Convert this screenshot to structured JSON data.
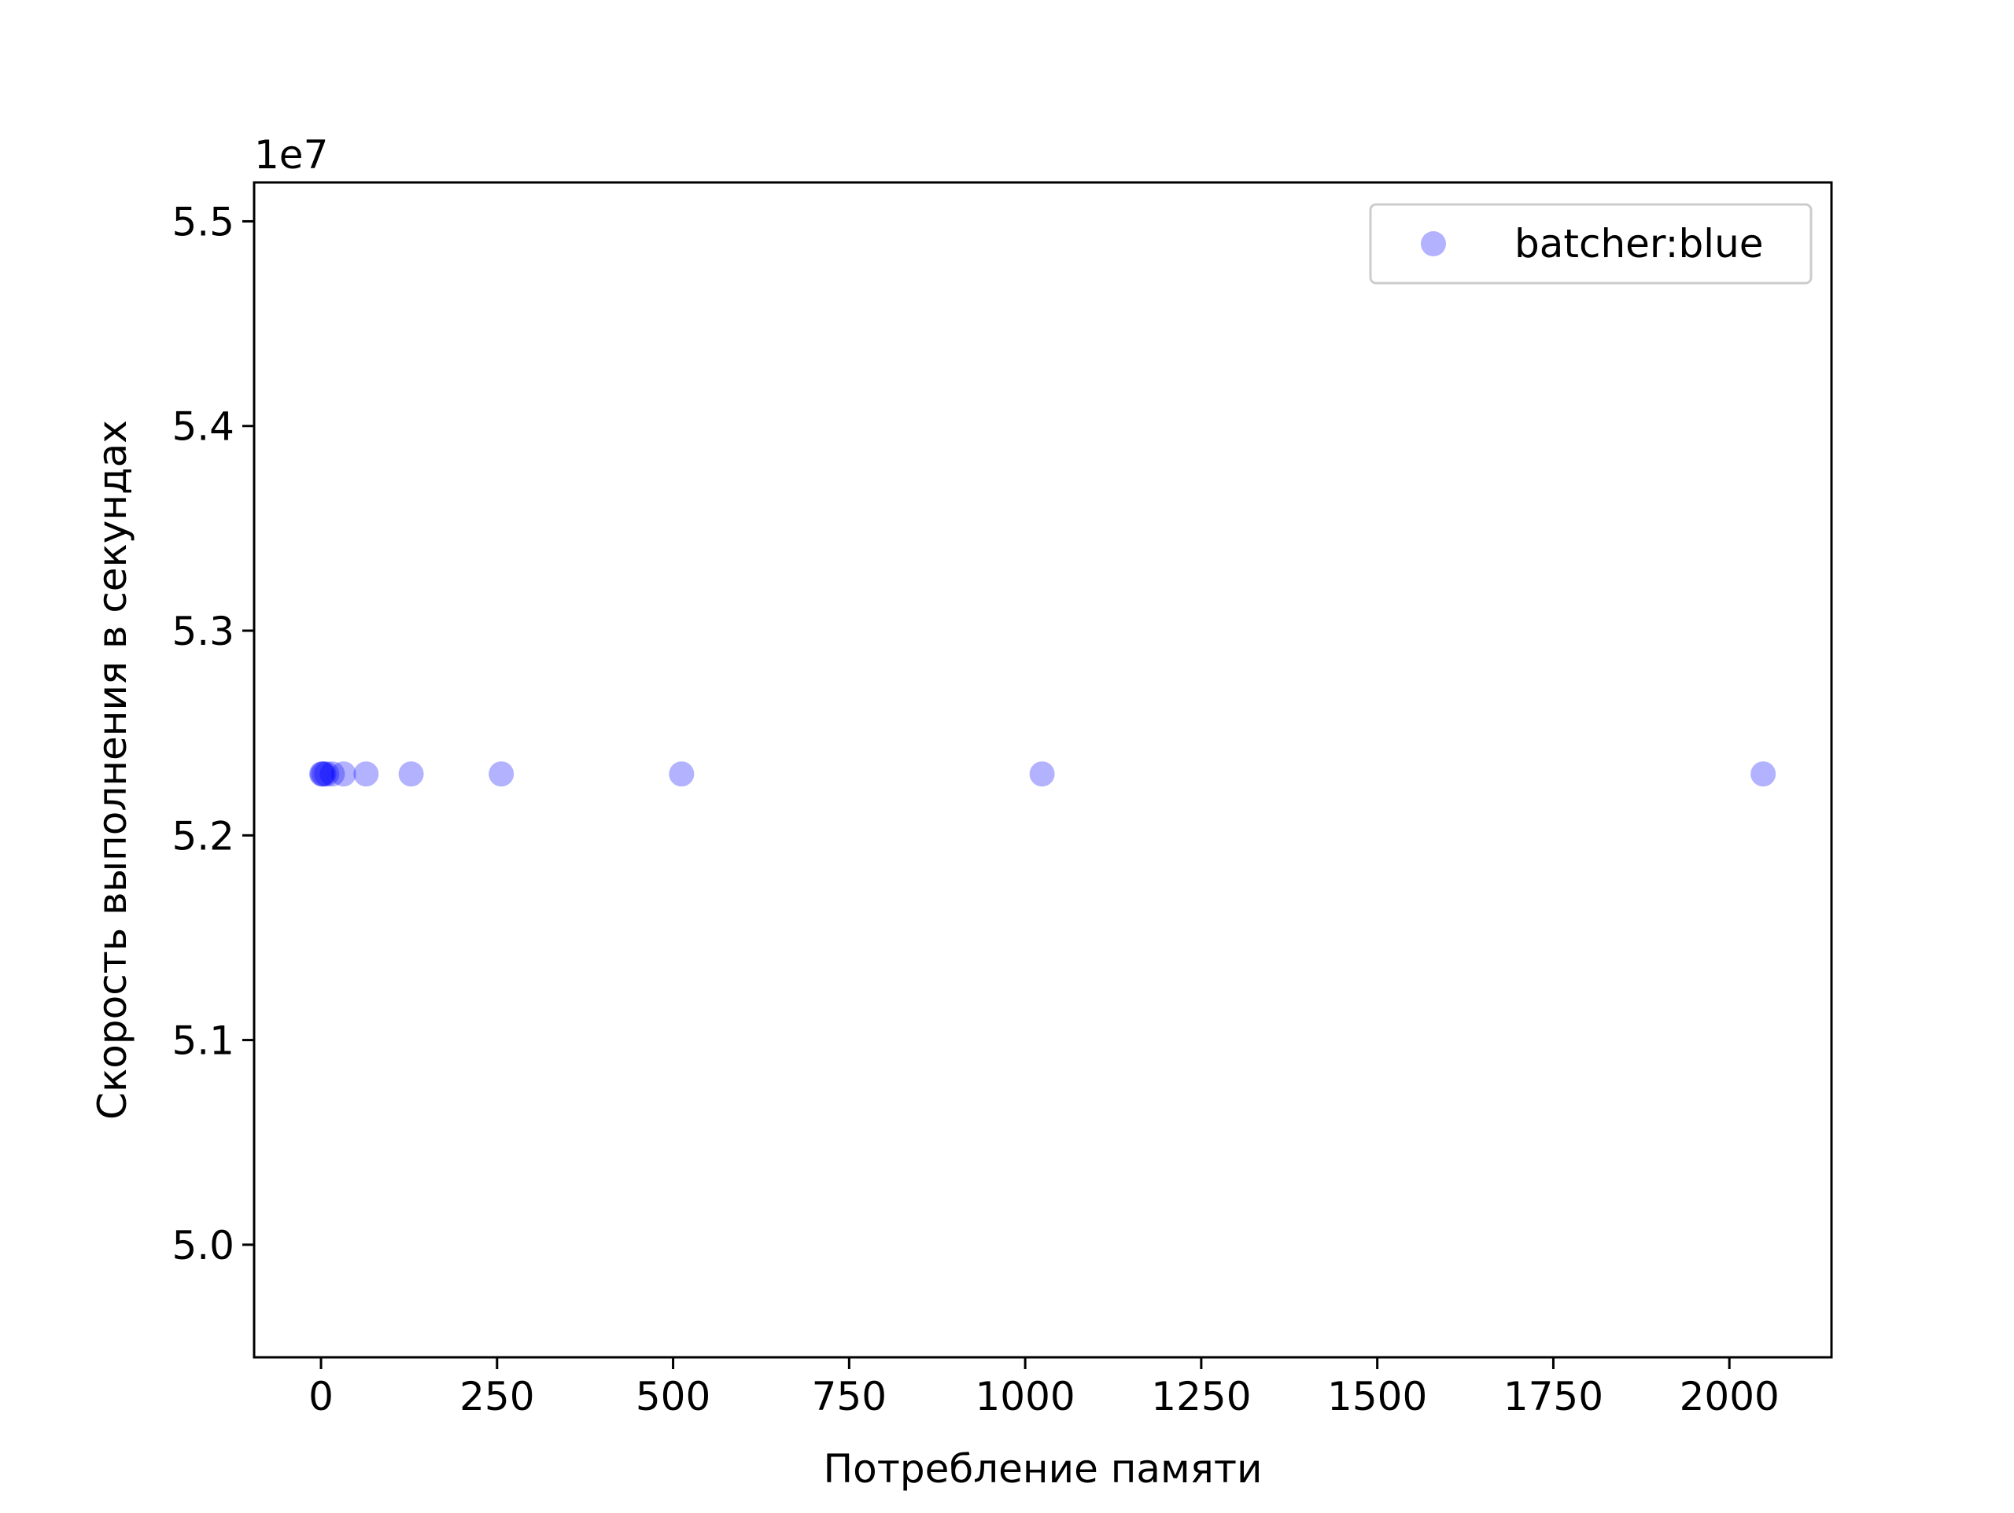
{
  "chart_data": {
    "type": "scatter",
    "title": "",
    "xlabel": "Потребление памяти",
    "ylabel": "Скорость выполнения в секундах",
    "y_offset_label": "1e7",
    "xlim": [
      -95,
      2145
    ],
    "ylim": [
      49450000,
      55190000
    ],
    "x_ticks": [
      0,
      250,
      500,
      750,
      1000,
      1250,
      1500,
      1750,
      2000
    ],
    "x_tick_labels": [
      "0",
      "250",
      "500",
      "750",
      "1000",
      "1250",
      "1500",
      "1750",
      "2000"
    ],
    "y_ticks": [
      50000000,
      51000000,
      52000000,
      53000000,
      54000000,
      55000000
    ],
    "y_tick_labels": [
      "5.0",
      "5.1",
      "5.2",
      "5.3",
      "5.4",
      "5.5"
    ],
    "grid": false,
    "legend_position": "top-right",
    "series": [
      {
        "name": "batcher:blue",
        "color": "#0000ff",
        "alpha": 0.3,
        "points": [
          {
            "x": 1,
            "y": 52300000
          },
          {
            "x": 2,
            "y": 52300000
          },
          {
            "x": 4,
            "y": 52300000
          },
          {
            "x": 8,
            "y": 52300000
          },
          {
            "x": 16,
            "y": 52300000
          },
          {
            "x": 32,
            "y": 52300000
          },
          {
            "x": 64,
            "y": 52300000
          },
          {
            "x": 128,
            "y": 52300000
          },
          {
            "x": 256,
            "y": 52300000
          },
          {
            "x": 512,
            "y": 52300000
          },
          {
            "x": 1024,
            "y": 52300000
          },
          {
            "x": 2048,
            "y": 52300000
          }
        ]
      }
    ]
  }
}
